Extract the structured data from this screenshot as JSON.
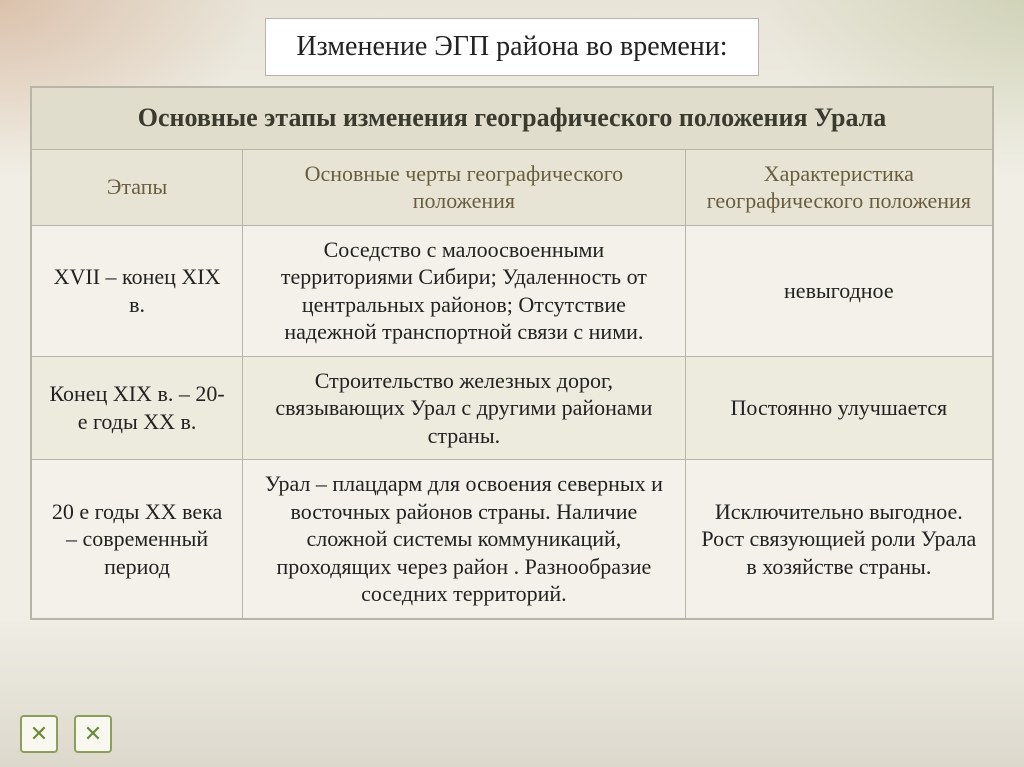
{
  "slide": {
    "title": "Изменение ЭГП района во времени:"
  },
  "table": {
    "main_header": "Основные этапы изменения географического положения Урала",
    "columns": {
      "stages": "Этапы",
      "features": "Основные черты географического положения",
      "characteristic": "Характеристика географического положения"
    },
    "rows": [
      {
        "stage": "XVII – конец XIX в.",
        "features": "Соседство с малоосвоенными территориями Сибири; Удаленность от центральных районов; Отсутствие надежной транспортной связи с ними.",
        "characteristic": "невыгодное"
      },
      {
        "stage": "Конец XIX в. – 20-е годы XX в.",
        "features": "Строительство железных дорог, связывающих Урал с другими районами страны.",
        "characteristic": "Постоянно улучшается"
      },
      {
        "stage": "20 е годы XX века – современный период",
        "features": "Урал – плацдарм для освоения северных и восточных районов страны. Наличие сложной системы коммуникаций, проходящих через район . Разнообразие соседних территорий.",
        "characteristic": "Исключительно выгодное. Рост связующией роли Урала в хозяйстве страны."
      }
    ]
  },
  "nav": {
    "prev_symbol": "✕",
    "next_symbol": "✕"
  },
  "colors": {
    "border": "#b8b4a8",
    "header_bg": "#e0ddcd",
    "subheader_bg": "#e7e4d5",
    "row_odd": "#f3f1e9",
    "row_even": "#edeade",
    "accent_green": "#8aa05a"
  },
  "layout": {
    "col_widths_pct": [
      22,
      46,
      32
    ],
    "title_fontsize": 28,
    "header_fontsize": 26,
    "cell_fontsize": 22
  }
}
